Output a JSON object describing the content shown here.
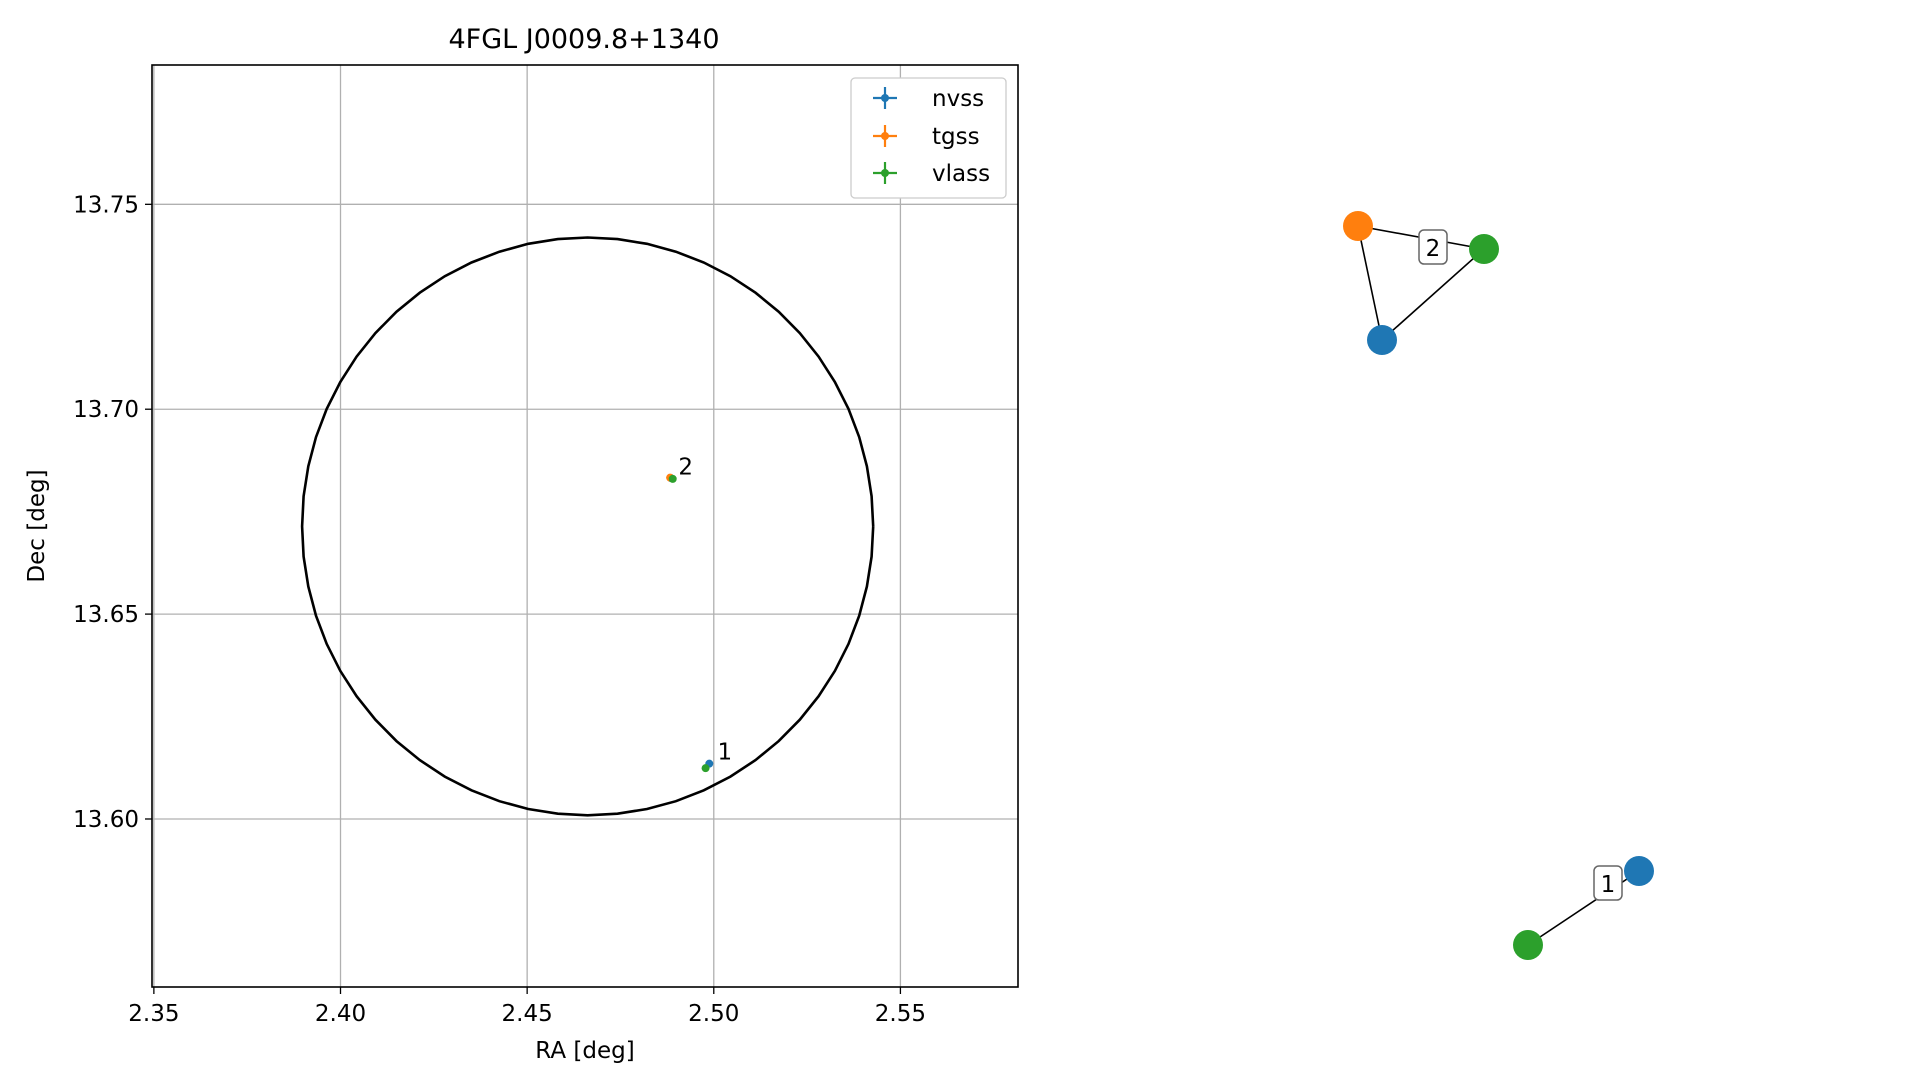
{
  "colors": {
    "nvss": "#1f77b4",
    "tgss": "#ff7f0e",
    "vlass": "#2ca02c",
    "grid": "#b0b0b0",
    "circle": "#000000"
  },
  "chart_data": [
    {
      "type": "scatter",
      "title": "4FGL J0009.8+1340",
      "xlabel": "RA [deg]",
      "ylabel": "Dec [deg]",
      "xlim": [
        2.3495,
        2.5815
      ],
      "ylim": [
        13.559,
        13.784
      ],
      "xticks": [
        2.35,
        2.4,
        2.45,
        2.5,
        2.55
      ],
      "xtick_labels": [
        "2.35",
        "2.40",
        "2.45",
        "2.50",
        "2.55"
      ],
      "yticks": [
        13.6,
        13.65,
        13.7,
        13.75
      ],
      "ytick_labels": [
        "13.60",
        "13.65",
        "13.70",
        "13.75"
      ],
      "grid": true,
      "legend_position": "top-right",
      "legend": [
        "nvss",
        "tgss",
        "vlass"
      ],
      "series": [
        {
          "name": "nvss",
          "points": [
            {
              "x": 2.4988,
              "y": 13.6135
            },
            {
              "x": 2.4885,
              "y": 13.6832
            }
          ]
        },
        {
          "name": "tgss",
          "points": [
            {
              "x": 2.4883,
              "y": 13.6833
            }
          ]
        },
        {
          "name": "vlass",
          "points": [
            {
              "x": 2.4978,
              "y": 13.6124
            },
            {
              "x": 2.489,
              "y": 13.683
            }
          ]
        }
      ],
      "error_circle": {
        "ra": 2.4662,
        "dec": 13.6714,
        "radius": 0.0765,
        "dec_radius": 0.0705
      },
      "annotations": [
        {
          "text": "1",
          "x": 2.501,
          "y": 13.6155
        },
        {
          "text": "2",
          "x": 2.4905,
          "y": 13.685
        }
      ]
    },
    {
      "type": "network",
      "clusters": [
        {
          "label": "2",
          "nodes": [
            "tgss",
            "vlass",
            "nvss"
          ],
          "edges": [
            [
              "tgss",
              "vlass"
            ],
            [
              "tgss",
              "nvss"
            ],
            [
              "nvss",
              "vlass"
            ]
          ]
        },
        {
          "label": "1",
          "nodes": [
            "vlass",
            "nvss"
          ],
          "edges": [
            [
              "vlass",
              "nvss"
            ]
          ]
        }
      ]
    }
  ]
}
